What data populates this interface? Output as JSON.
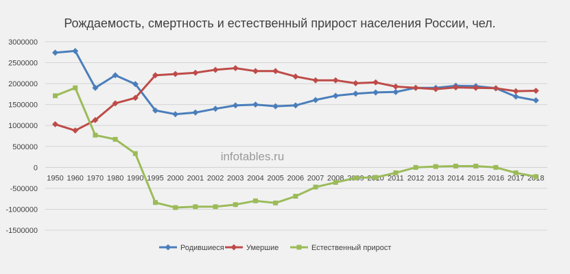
{
  "chart_data": {
    "type": "line",
    "title": "Рождаемость, смертность и естественный прирост населения России, чел.",
    "categories": [
      "1950",
      "1960",
      "1970",
      "1980",
      "1990",
      "1995",
      "2000",
      "2001",
      "2002",
      "2003",
      "2004",
      "2005",
      "2006",
      "2007",
      "2008",
      "2009",
      "2010",
      "2011",
      "2012",
      "2013",
      "2014",
      "2015",
      "2016",
      "2017",
      "2018"
    ],
    "y_ticks": [
      3000000,
      2500000,
      2000000,
      1500000,
      1000000,
      500000,
      0,
      -500000,
      -1000000,
      -1500000
    ],
    "ylim": [
      -1500000,
      3000000
    ],
    "xlabel": "",
    "ylabel": "",
    "grid": true,
    "legend_position": "bottom",
    "watermark": "infotables.ru",
    "series": [
      {
        "name": "Родившиеся",
        "color": "#4a7ebb",
        "marker": "diamond",
        "values": [
          2740000,
          2780000,
          1900000,
          2200000,
          1990000,
          1360000,
          1270000,
          1310000,
          1400000,
          1480000,
          1500000,
          1460000,
          1480000,
          1610000,
          1710000,
          1760000,
          1790000,
          1800000,
          1900000,
          1900000,
          1950000,
          1940000,
          1890000,
          1690000,
          1600000
        ]
      },
      {
        "name": "Умершие",
        "color": "#be4b48",
        "marker": "diamond",
        "values": [
          1030000,
          880000,
          1130000,
          1530000,
          1660000,
          2200000,
          2230000,
          2260000,
          2330000,
          2370000,
          2300000,
          2300000,
          2170000,
          2080000,
          2080000,
          2010000,
          2030000,
          1930000,
          1900000,
          1870000,
          1910000,
          1900000,
          1890000,
          1820000,
          1830000
        ]
      },
      {
        "name": "Естественный прирост",
        "color": "#9bbb59",
        "marker": "square",
        "values": [
          1710000,
          1900000,
          770000,
          670000,
          330000,
          -840000,
          -960000,
          -940000,
          -940000,
          -890000,
          -800000,
          -850000,
          -690000,
          -470000,
          -360000,
          -250000,
          -240000,
          -130000,
          -1000,
          20000,
          30000,
          30000,
          -1000,
          -130000,
          -220000
        ]
      }
    ]
  }
}
